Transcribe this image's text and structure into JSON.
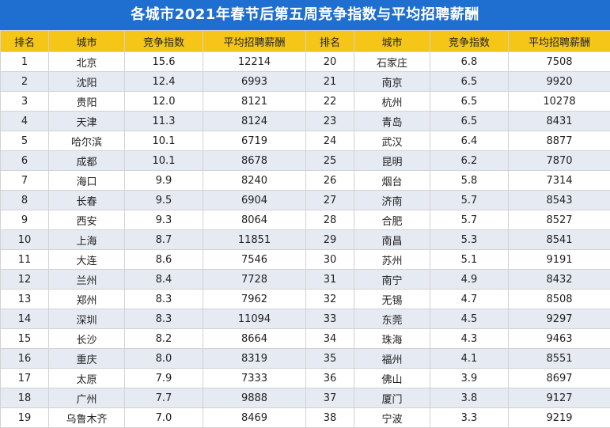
{
  "title": "各城市2021年春节后第五周竞争指数与平均招聘薪酬",
  "columns": [
    "排名",
    "城市",
    "竞争指数",
    "平均招聘薪酬",
    "排名",
    "城市",
    "竞争指数",
    "平均招聘薪酬"
  ],
  "rows": [
    [
      "1",
      "北京",
      "15.6",
      "12214",
      "20",
      "石家庄",
      "6.8",
      "7508"
    ],
    [
      "2",
      "沈阳",
      "12.4",
      "6993",
      "21",
      "南京",
      "6.5",
      "9920"
    ],
    [
      "3",
      "贵阳",
      "12.0",
      "8121",
      "22",
      "杭州",
      "6.5",
      "10278"
    ],
    [
      "4",
      "天津",
      "11.3",
      "8124",
      "23",
      "青岛",
      "6.5",
      "8431"
    ],
    [
      "5",
      "哈尔滨",
      "10.1",
      "6719",
      "24",
      "武汉",
      "6.4",
      "8877"
    ],
    [
      "6",
      "成都",
      "10.1",
      "8678",
      "25",
      "昆明",
      "6.2",
      "7870"
    ],
    [
      "7",
      "海口",
      "9.9",
      "8240",
      "26",
      "烟台",
      "5.8",
      "7314"
    ],
    [
      "8",
      "长春",
      "9.5",
      "6904",
      "27",
      "济南",
      "5.7",
      "8543"
    ],
    [
      "9",
      "西安",
      "9.3",
      "8064",
      "28",
      "合肥",
      "5.7",
      "8527"
    ],
    [
      "10",
      "上海",
      "8.7",
      "11851",
      "29",
      "南昌",
      "5.3",
      "8541"
    ],
    [
      "11",
      "大连",
      "8.6",
      "7546",
      "30",
      "苏州",
      "5.1",
      "9191"
    ],
    [
      "12",
      "兰州",
      "8.4",
      "7728",
      "31",
      "南宁",
      "4.9",
      "8432"
    ],
    [
      "13",
      "郑州",
      "8.3",
      "7962",
      "32",
      "无锡",
      "4.7",
      "8508"
    ],
    [
      "14",
      "深圳",
      "8.3",
      "11094",
      "33",
      "东莞",
      "4.5",
      "9297"
    ],
    [
      "15",
      "长沙",
      "8.2",
      "8664",
      "34",
      "珠海",
      "4.3",
      "9463"
    ],
    [
      "16",
      "重庆",
      "8.0",
      "8319",
      "35",
      "福州",
      "4.1",
      "8551"
    ],
    [
      "17",
      "太原",
      "7.9",
      "7333",
      "36",
      "佛山",
      "3.9",
      "8697"
    ],
    [
      "18",
      "广州",
      "7.7",
      "9888",
      "37",
      "厦门",
      "3.8",
      "9127"
    ],
    [
      "19",
      "乌鲁木齐",
      "7.0",
      "8469",
      "38",
      "宁波",
      "3.3",
      "9219"
    ]
  ],
  "colors": {
    "title_bg": "#1e6fcf",
    "header_bg": "#f5c518",
    "row_alt_bg": "#e6eaf3"
  }
}
